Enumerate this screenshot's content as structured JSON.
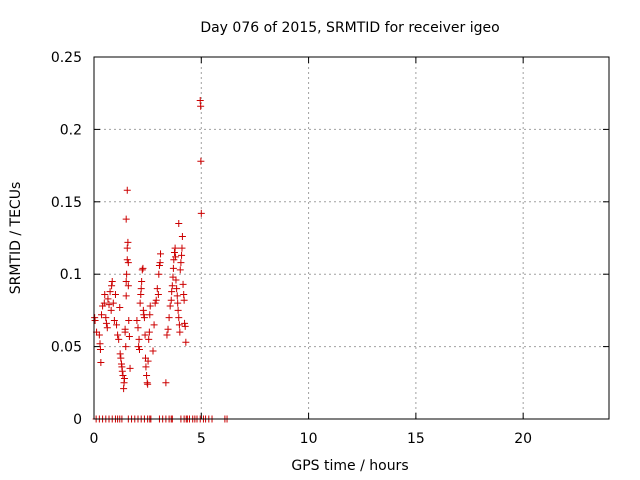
{
  "chart_data": {
    "type": "scatter",
    "title": "Day 076 of 2015, SRMTID for receiver igeo",
    "xlabel": "GPS time / hours",
    "ylabel": "SRMTID / TECUs",
    "xlim": [
      0,
      24
    ],
    "ylim": [
      0,
      0.25
    ],
    "x_ticks": [
      0,
      5,
      10,
      15,
      20
    ],
    "x_tick_labels": [
      "0",
      "5",
      "10",
      "15",
      "20"
    ],
    "y_ticks": [
      0,
      0.05,
      0.1,
      0.15,
      0.2,
      0.25
    ],
    "y_tick_labels": [
      "0",
      "0.05",
      "0.1",
      "0.15",
      "0.2",
      "0.25"
    ],
    "grid": true,
    "marker": "plus",
    "color": "#cc0000",
    "points": [
      [
        0.03,
        0.07
      ],
      [
        0.05,
        0.068
      ],
      [
        0.12,
        0.06
      ],
      [
        0.25,
        0.058
      ],
      [
        0.28,
        0.052
      ],
      [
        0.3,
        0.048
      ],
      [
        0.32,
        0.039
      ],
      [
        0.35,
        0.072
      ],
      [
        0.4,
        0.078
      ],
      [
        0.48,
        0.08
      ],
      [
        0.5,
        0.086
      ],
      [
        0.55,
        0.07
      ],
      [
        0.58,
        0.066
      ],
      [
        0.62,
        0.063
      ],
      [
        0.65,
        0.083
      ],
      [
        0.7,
        0.079
      ],
      [
        0.75,
        0.088
      ],
      [
        0.8,
        0.075
      ],
      [
        0.82,
        0.092
      ],
      [
        0.85,
        0.095
      ],
      [
        0.9,
        0.08
      ],
      [
        0.95,
        0.068
      ],
      [
        1.0,
        0.086
      ],
      [
        1.05,
        0.065
      ],
      [
        1.1,
        0.058
      ],
      [
        1.15,
        0.055
      ],
      [
        1.2,
        0.077
      ],
      [
        1.22,
        0.045
      ],
      [
        1.25,
        0.042
      ],
      [
        1.28,
        0.038
      ],
      [
        1.3,
        0.036
      ],
      [
        1.32,
        0.033
      ],
      [
        1.35,
        0.03
      ],
      [
        1.38,
        0.021
      ],
      [
        1.4,
        0.025
      ],
      [
        1.42,
        0.028
      ],
      [
        1.45,
        0.06
      ],
      [
        1.45,
        0.062
      ],
      [
        1.48,
        0.05
      ],
      [
        1.5,
        0.085
      ],
      [
        1.5,
        0.095
      ],
      [
        1.52,
        0.1
      ],
      [
        1.55,
        0.11
      ],
      [
        1.55,
        0.118
      ],
      [
        1.58,
        0.122
      ],
      [
        1.5,
        0.138
      ],
      [
        1.55,
        0.158
      ],
      [
        1.6,
        0.108
      ],
      [
        1.6,
        0.092
      ],
      [
        1.62,
        0.068
      ],
      [
        1.65,
        0.057
      ],
      [
        1.68,
        0.035
      ],
      [
        2.0,
        0.068
      ],
      [
        2.05,
        0.063
      ],
      [
        2.08,
        0.05
      ],
      [
        2.1,
        0.055
      ],
      [
        2.12,
        0.048
      ],
      [
        2.15,
        0.08
      ],
      [
        2.18,
        0.086
      ],
      [
        2.2,
        0.09
      ],
      [
        2.22,
        0.095
      ],
      [
        2.25,
        0.103
      ],
      [
        2.28,
        0.104
      ],
      [
        2.3,
        0.075
      ],
      [
        2.32,
        0.072
      ],
      [
        2.35,
        0.07
      ],
      [
        2.38,
        0.058
      ],
      [
        2.4,
        0.042
      ],
      [
        2.42,
        0.036
      ],
      [
        2.45,
        0.03
      ],
      [
        2.48,
        0.025
      ],
      [
        2.5,
        0.024
      ],
      [
        2.52,
        0.04
      ],
      [
        2.55,
        0.055
      ],
      [
        2.58,
        0.06
      ],
      [
        2.6,
        0.072
      ],
      [
        2.62,
        0.078
      ],
      [
        2.75,
        0.047
      ],
      [
        2.8,
        0.065
      ],
      [
        2.85,
        0.08
      ],
      [
        2.9,
        0.082
      ],
      [
        2.95,
        0.09
      ],
      [
        3.0,
        0.086
      ],
      [
        3.02,
        0.1
      ],
      [
        3.05,
        0.106
      ],
      [
        3.08,
        0.108
      ],
      [
        3.1,
        0.114
      ],
      [
        3.35,
        0.025
      ],
      [
        3.4,
        0.058
      ],
      [
        3.45,
        0.062
      ],
      [
        3.5,
        0.07
      ],
      [
        3.55,
        0.078
      ],
      [
        3.6,
        0.082
      ],
      [
        3.62,
        0.088
      ],
      [
        3.65,
        0.092
      ],
      [
        3.68,
        0.098
      ],
      [
        3.7,
        0.104
      ],
      [
        3.72,
        0.11
      ],
      [
        3.75,
        0.115
      ],
      [
        3.78,
        0.118
      ],
      [
        3.8,
        0.112
      ],
      [
        3.82,
        0.096
      ],
      [
        3.85,
        0.09
      ],
      [
        3.88,
        0.085
      ],
      [
        3.9,
        0.08
      ],
      [
        3.92,
        0.075
      ],
      [
        3.95,
        0.07
      ],
      [
        3.98,
        0.065
      ],
      [
        4.0,
        0.06
      ],
      [
        4.02,
        0.103
      ],
      [
        4.05,
        0.108
      ],
      [
        4.08,
        0.113
      ],
      [
        4.1,
        0.118
      ],
      [
        4.12,
        0.126
      ],
      [
        4.15,
        0.093
      ],
      [
        4.18,
        0.086
      ],
      [
        4.2,
        0.082
      ],
      [
        4.22,
        0.066
      ],
      [
        4.25,
        0.064
      ],
      [
        4.28,
        0.053
      ],
      [
        3.95,
        0.135
      ],
      [
        4.95,
        0.22
      ],
      [
        4.97,
        0.216
      ],
      [
        4.98,
        0.178
      ],
      [
        5.0,
        0.142
      ]
    ],
    "zero_points_x": [
      0.1,
      0.25,
      0.4,
      0.55,
      0.7,
      0.85,
      1.0,
      1.1,
      1.2,
      1.3,
      1.6,
      1.75,
      1.9,
      2.05,
      2.2,
      2.35,
      2.5,
      2.6,
      2.65,
      3.05,
      3.2,
      3.35,
      3.5,
      3.6,
      3.65,
      4.05,
      4.2,
      4.3,
      4.35,
      4.45,
      4.6,
      4.7,
      4.8,
      4.95,
      5.1,
      5.2,
      5.35,
      5.5,
      6.1,
      6.2
    ]
  }
}
